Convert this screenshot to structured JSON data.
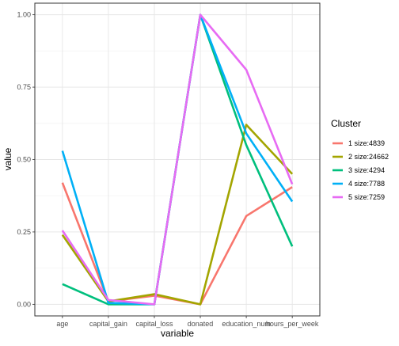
{
  "chart_data": {
    "type": "line",
    "xlabel": "variable",
    "ylabel": "value",
    "categories": [
      "age",
      "capital_gain",
      "capital_loss",
      "donated",
      "education_num",
      "hours_per_week"
    ],
    "ylim": [
      -0.04,
      1.04
    ],
    "yticks": [
      0.0,
      0.25,
      0.5,
      0.75,
      1.0
    ],
    "ytick_labels": [
      "0.00",
      "0.25",
      "0.50",
      "0.75",
      "1.00"
    ],
    "grid": true,
    "legend": {
      "title": "Cluster",
      "placement": "right"
    },
    "series": [
      {
        "name": "1 size:4839",
        "color": "#F8766D",
        "values": [
          0.42,
          0.01,
          0.03,
          0.0,
          0.305,
          0.405
        ]
      },
      {
        "name": "2 size:24662",
        "color": "#A3A500",
        "values": [
          0.24,
          0.01,
          0.035,
          0.0,
          0.62,
          0.45
        ]
      },
      {
        "name": "3 size:4294",
        "color": "#00BF7D",
        "values": [
          0.07,
          0.0,
          0.0,
          1.0,
          0.55,
          0.2
        ]
      },
      {
        "name": "4 size:7788",
        "color": "#00B0F6",
        "values": [
          0.53,
          0.005,
          0.0,
          1.0,
          0.59,
          0.355
        ]
      },
      {
        "name": "5 size:7259",
        "color": "#E76BF3",
        "values": [
          0.255,
          0.015,
          0.0,
          1.0,
          0.81,
          0.415
        ]
      }
    ]
  }
}
